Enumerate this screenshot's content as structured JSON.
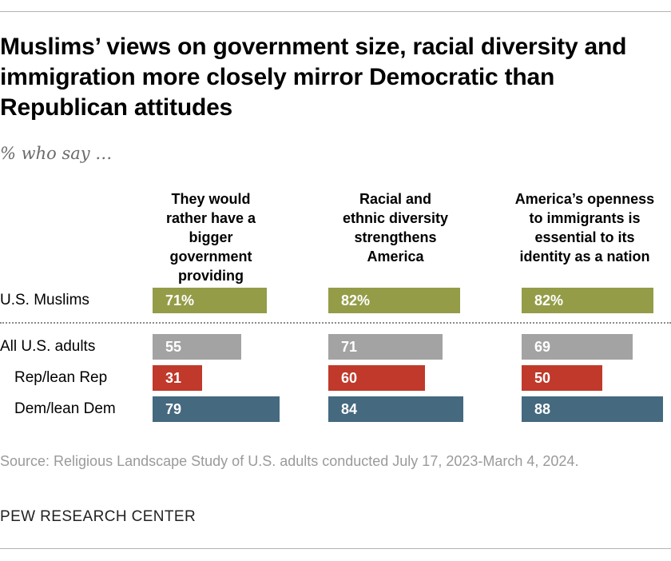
{
  "chart_data": {
    "type": "bar",
    "orientation": "horizontal",
    "title": "Muslims’ views on government size, racial diversity and immigration more closely mirror Democratic than Republican attitudes",
    "subtitle": "% who say …",
    "value_format": "percent on first row only",
    "categories": [
      "They would rather have a bigger government providing more services",
      "Racial and ethnic diversity strengthens America",
      "America’s openness to immigrants is essential to its identity as a nation"
    ],
    "series": [
      {
        "name": "U.S. Muslims",
        "color": "#949c48",
        "values": [
          71,
          82,
          82
        ]
      },
      {
        "name": "All U.S. adults",
        "color": "#a3a3a3",
        "values": [
          55,
          71,
          69
        ]
      },
      {
        "name": "Rep/lean Rep",
        "color": "#c0392b",
        "values": [
          31,
          60,
          50
        ]
      },
      {
        "name": "Dem/lean Dem",
        "color": "#45697f",
        "values": [
          79,
          84,
          88
        ]
      }
    ],
    "xlim": [
      0,
      100
    ],
    "grid": false,
    "legend": "none"
  },
  "source": "Source: Religious Landscape Study of U.S. adults conducted July 17, 2023-March 4, 2024.",
  "brand": "PEW RESEARCH CENTER"
}
